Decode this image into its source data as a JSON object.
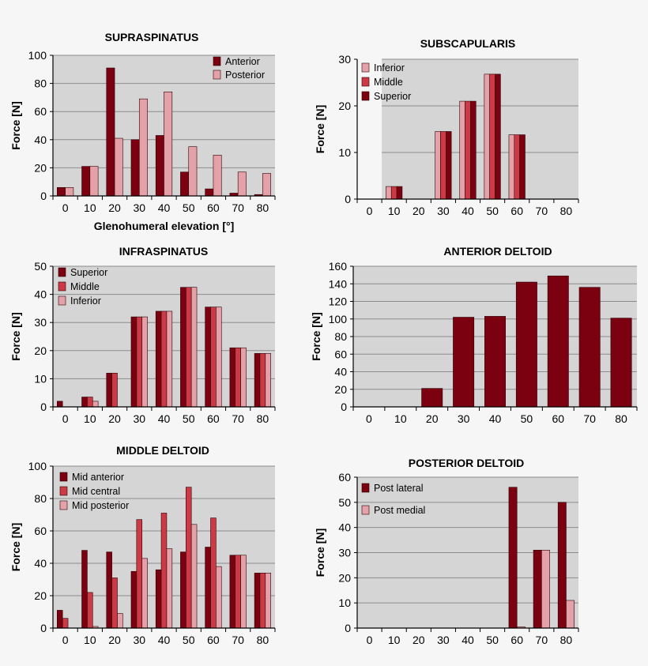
{
  "colors": {
    "dark": "#7b0010",
    "mid": "#cc3a46",
    "light": "#e4a2a8",
    "plot_bg": "#d5d5d5",
    "grid": "#8c8c8c"
  },
  "chart_data": [
    {
      "id": "supraspinatus",
      "type": "bar",
      "title": "SUPRASPINATUS",
      "xlabel": "Glenohumeral elevation [°]",
      "ylabel": "Force [N]",
      "categories": [
        "0",
        "10",
        "20",
        "30",
        "40",
        "50",
        "60",
        "70",
        "80"
      ],
      "ylim": [
        0,
        100
      ],
      "yticks": [
        0,
        20,
        40,
        60,
        80,
        100
      ],
      "legend_position": "top-right",
      "series": [
        {
          "name": "Anterior",
          "color": "dark",
          "values": [
            6,
            21,
            91,
            40,
            43,
            17,
            5,
            2,
            1
          ]
        },
        {
          "name": "Posterior",
          "color": "light",
          "values": [
            6,
            21,
            41,
            69,
            74,
            35,
            29,
            17,
            16
          ]
        }
      ]
    },
    {
      "id": "subscapularis",
      "type": "bar",
      "title": "SUBSCAPULARIS",
      "xlabel": "",
      "ylabel": "Force [N]",
      "categories": [
        "0",
        "10",
        "20",
        "30",
        "40",
        "50",
        "60",
        "70",
        "80"
      ],
      "ylim": [
        0,
        30
      ],
      "yticks": [
        0,
        10,
        20,
        30
      ],
      "legend_position": "top-left",
      "series": [
        {
          "name": "Inferior",
          "color": "light",
          "values": [
            0,
            2.7,
            0,
            14.5,
            21,
            26.8,
            13.8,
            0,
            0
          ]
        },
        {
          "name": "Middle",
          "color": "mid",
          "values": [
            0,
            2.7,
            0,
            14.5,
            21,
            26.8,
            13.8,
            0,
            0
          ]
        },
        {
          "name": "Superior",
          "color": "dark",
          "values": [
            0,
            2.7,
            0,
            14.5,
            21,
            26.8,
            13.8,
            0,
            0
          ]
        }
      ]
    },
    {
      "id": "infraspinatus",
      "type": "bar",
      "title": "INFRASPINATUS",
      "xlabel": "",
      "ylabel": "Force [N]",
      "categories": [
        "0",
        "10",
        "20",
        "30",
        "40",
        "50",
        "60",
        "70",
        "80"
      ],
      "ylim": [
        0,
        50
      ],
      "yticks": [
        0,
        10,
        20,
        30,
        40,
        50
      ],
      "legend_position": "top-left",
      "series": [
        {
          "name": "Superior",
          "color": "dark",
          "values": [
            2,
            3.5,
            12,
            32,
            34,
            42.5,
            35.5,
            21,
            19
          ]
        },
        {
          "name": "Middle",
          "color": "mid",
          "values": [
            0,
            3.5,
            12,
            32,
            34,
            42.5,
            35.5,
            21,
            19
          ]
        },
        {
          "name": "Inferior",
          "color": "light",
          "values": [
            0,
            2,
            0,
            32,
            34,
            42.5,
            35.5,
            21,
            19
          ]
        }
      ]
    },
    {
      "id": "anterior-deltoid",
      "type": "bar",
      "title": "ANTERIOR DELTOID",
      "xlabel": "",
      "ylabel": "Force [N]",
      "categories": [
        "0",
        "10",
        "20",
        "30",
        "40",
        "50",
        "60",
        "70",
        "80"
      ],
      "ylim": [
        0,
        160
      ],
      "yticks": [
        0,
        20,
        40,
        60,
        80,
        100,
        120,
        140,
        160
      ],
      "legend_position": "none",
      "series": [
        {
          "name": "Anterior deltoid",
          "color": "dark",
          "values": [
            0,
            0,
            21,
            102,
            103,
            142,
            149,
            136,
            101
          ]
        }
      ]
    },
    {
      "id": "middle-deltoid",
      "type": "bar",
      "title": "MIDDLE DELTOID",
      "xlabel": "",
      "ylabel": "Force [N]",
      "categories": [
        "0",
        "10",
        "20",
        "30",
        "40",
        "50",
        "60",
        "70",
        "80"
      ],
      "ylim": [
        0,
        100
      ],
      "yticks": [
        0,
        20,
        40,
        60,
        80,
        100
      ],
      "legend_position": "top-left",
      "series": [
        {
          "name": "Mid anterior",
          "color": "dark",
          "values": [
            11,
            48,
            47,
            35,
            36,
            47,
            50,
            45,
            34
          ]
        },
        {
          "name": "Mid central",
          "color": "mid",
          "values": [
            6,
            22,
            31,
            67,
            71,
            87,
            68,
            45,
            34
          ]
        },
        {
          "name": "Mid posterior",
          "color": "light",
          "values": [
            0,
            1,
            9,
            43,
            49,
            64,
            38,
            45,
            34
          ]
        }
      ]
    },
    {
      "id": "posterior-deltoid",
      "type": "bar",
      "title": "POSTERIOR DELTOID",
      "xlabel": "",
      "ylabel": "Force [N]",
      "categories": [
        "0",
        "10",
        "20",
        "30",
        "40",
        "50",
        "60",
        "70",
        "80"
      ],
      "ylim": [
        0,
        60
      ],
      "yticks": [
        0,
        10,
        20,
        30,
        40,
        50,
        60
      ],
      "legend_position": "top-left",
      "series": [
        {
          "name": "Post lateral",
          "color": "dark",
          "values": [
            0,
            0,
            0,
            0,
            0,
            0,
            56,
            31,
            50
          ]
        },
        {
          "name": "Post medial",
          "color": "light",
          "values": [
            0,
            0,
            0,
            0,
            0,
            0,
            0.5,
            31,
            11
          ]
        }
      ]
    }
  ]
}
